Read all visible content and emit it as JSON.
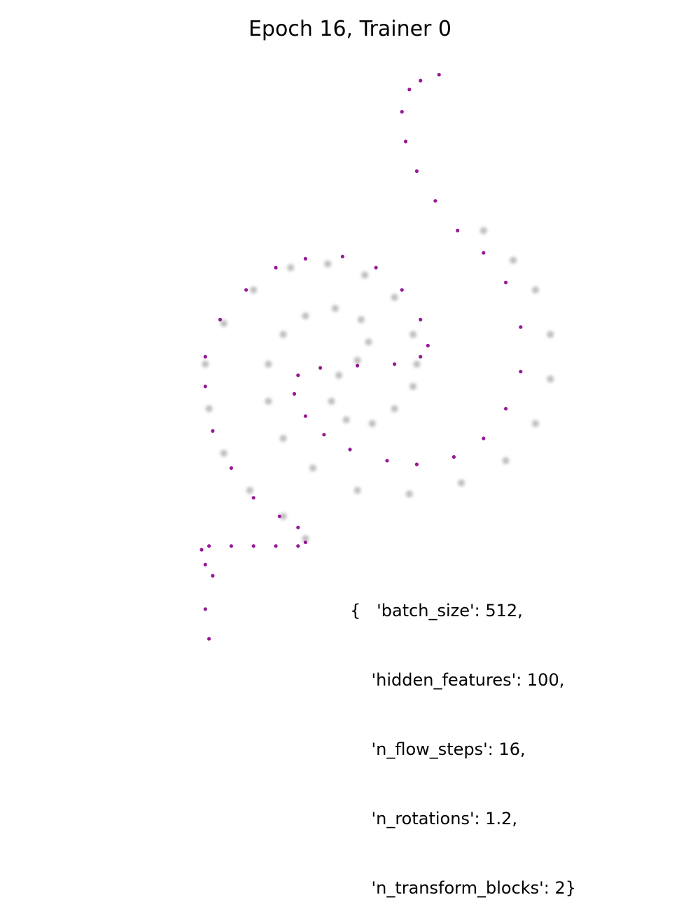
{
  "chart_data": {
    "type": "scatter",
    "title": "Epoch 16, Trainer 0",
    "xlabel": "",
    "ylabel": "",
    "axes_visible": false,
    "grid": false,
    "xlim": [
      -4,
      4
    ],
    "ylim": [
      -4,
      4
    ],
    "series": [
      {
        "role": "target",
        "color": "#888888",
        "points": [
          [
            1.8,
            1.8
          ],
          [
            2.2,
            1.4
          ],
          [
            2.5,
            1.0
          ],
          [
            2.7,
            0.4
          ],
          [
            2.7,
            -0.2
          ],
          [
            2.5,
            -0.8
          ],
          [
            2.1,
            -1.3
          ],
          [
            1.5,
            -1.6
          ],
          [
            0.8,
            -1.75
          ],
          [
            0.1,
            -1.7
          ],
          [
            -0.5,
            -1.4
          ],
          [
            -0.9,
            -1.0
          ],
          [
            -1.1,
            -0.5
          ],
          [
            -1.1,
            0.0
          ],
          [
            -0.9,
            0.4
          ],
          [
            -0.6,
            0.65
          ],
          [
            -0.2,
            0.75
          ],
          [
            0.15,
            0.6
          ],
          [
            0.25,
            0.3
          ],
          [
            0.1,
            0.05
          ],
          [
            -0.15,
            -0.15
          ],
          [
            -0.25,
            -0.5
          ],
          [
            -0.05,
            -0.75
          ],
          [
            0.3,
            -0.8
          ],
          [
            0.6,
            -0.6
          ],
          [
            0.85,
            -0.3
          ],
          [
            0.9,
            0.0
          ],
          [
            0.85,
            0.4
          ],
          [
            0.6,
            0.9
          ],
          [
            0.2,
            1.2
          ],
          [
            -0.3,
            1.35
          ],
          [
            -0.8,
            1.3
          ],
          [
            -1.3,
            1.0
          ],
          [
            -1.7,
            0.55
          ],
          [
            -1.95,
            0.0
          ],
          [
            -1.9,
            -0.6
          ],
          [
            -1.7,
            -1.2
          ],
          [
            -1.35,
            -1.7
          ],
          [
            -0.9,
            -2.05
          ],
          [
            -0.6,
            -2.35
          ]
        ]
      },
      {
        "role": "model",
        "color": "#8b008b",
        "points": [
          [
            -0.6,
            -2.4
          ],
          [
            -0.7,
            -2.2
          ],
          [
            -0.95,
            -2.05
          ],
          [
            -1.3,
            -1.8
          ],
          [
            -1.6,
            -1.4
          ],
          [
            -1.85,
            -0.9
          ],
          [
            -1.95,
            -0.3
          ],
          [
            -1.95,
            0.1
          ],
          [
            -1.75,
            0.6
          ],
          [
            -1.4,
            1.0
          ],
          [
            -1.0,
            1.3
          ],
          [
            -0.6,
            1.42
          ],
          [
            -0.1,
            1.45
          ],
          [
            0.35,
            1.3
          ],
          [
            0.7,
            1.0
          ],
          [
            0.95,
            0.6
          ],
          [
            1.05,
            0.25
          ],
          [
            0.95,
            0.1
          ],
          [
            0.6,
            0.0
          ],
          [
            0.1,
            -0.02
          ],
          [
            -0.4,
            -0.05
          ],
          [
            -0.7,
            -0.15
          ],
          [
            -0.75,
            -0.4
          ],
          [
            -0.6,
            -0.7
          ],
          [
            -0.35,
            -0.95
          ],
          [
            0.0,
            -1.15
          ],
          [
            0.5,
            -1.3
          ],
          [
            0.9,
            -1.35
          ],
          [
            1.4,
            -1.25
          ],
          [
            1.8,
            -1.0
          ],
          [
            2.1,
            -0.6
          ],
          [
            2.3,
            -0.1
          ],
          [
            2.3,
            0.5
          ],
          [
            2.1,
            1.1
          ],
          [
            1.8,
            1.5
          ],
          [
            1.45,
            1.8
          ],
          [
            1.15,
            2.2
          ],
          [
            0.9,
            2.6
          ],
          [
            0.75,
            3.0
          ],
          [
            0.7,
            3.4
          ],
          [
            0.8,
            3.7
          ],
          [
            0.95,
            3.82
          ],
          [
            1.2,
            3.9
          ],
          [
            -1.9,
            -2.45
          ],
          [
            -1.6,
            -2.45
          ],
          [
            -1.3,
            -2.45
          ],
          [
            -1.0,
            -2.45
          ],
          [
            -0.7,
            -2.45
          ],
          [
            -2.0,
            -2.5
          ],
          [
            -1.95,
            -2.7
          ],
          [
            -1.85,
            -2.85
          ],
          [
            -1.95,
            -3.3
          ],
          [
            -1.9,
            -3.7
          ]
        ]
      }
    ],
    "annotation_lines": [
      "{   'batch_size': 512,",
      "    'hidden_features': 100,",
      "    'n_flow_steps': 16,",
      "    'n_rotations': 1.2,",
      "    'n_transform_blocks': 2}"
    ]
  }
}
